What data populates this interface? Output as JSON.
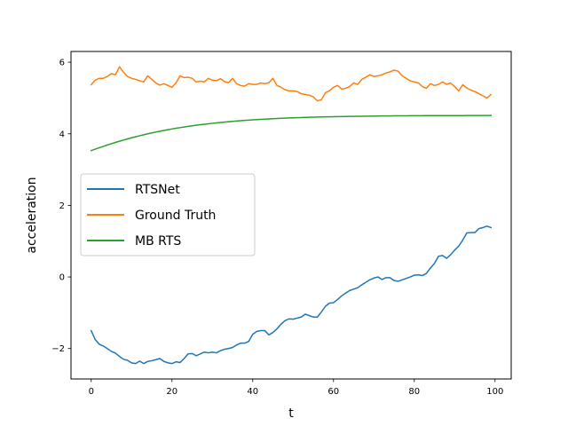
{
  "chart_data": {
    "type": "line",
    "title": "",
    "xlabel": "t",
    "ylabel": "acceleration",
    "xlim": [
      -5,
      104
    ],
    "ylim": [
      -2.85,
      6.3
    ],
    "xticks": [
      0,
      20,
      40,
      60,
      80,
      100
    ],
    "yticks": [
      -2,
      0,
      2,
      4,
      6
    ],
    "xtick_labels": [
      "0",
      "20",
      "40",
      "60",
      "80",
      "100"
    ],
    "ytick_labels": [
      "−2",
      "0",
      "2",
      "4",
      "6"
    ],
    "grid": false,
    "legend_position": "center-left",
    "x": [
      0,
      1,
      2,
      3,
      4,
      5,
      6,
      7,
      8,
      9,
      10,
      11,
      12,
      13,
      14,
      15,
      16,
      17,
      18,
      19,
      20,
      21,
      22,
      23,
      24,
      25,
      26,
      27,
      28,
      29,
      30,
      31,
      32,
      33,
      34,
      35,
      36,
      37,
      38,
      39,
      40,
      41,
      42,
      43,
      44,
      45,
      46,
      47,
      48,
      49,
      50,
      51,
      52,
      53,
      54,
      55,
      56,
      57,
      58,
      59,
      60,
      61,
      62,
      63,
      64,
      65,
      66,
      67,
      68,
      69,
      70,
      71,
      72,
      73,
      74,
      75,
      76,
      77,
      78,
      79,
      80,
      81,
      82,
      83,
      84,
      85,
      86,
      87,
      88,
      89,
      90,
      91,
      92,
      93,
      94,
      95,
      96,
      97,
      98,
      99
    ],
    "series": [
      {
        "name": "RTSNet",
        "color": "#1f77b4",
        "values": [
          -1.5,
          -1.75,
          -1.88,
          -1.93,
          -2.0,
          -2.08,
          -2.13,
          -2.22,
          -2.3,
          -2.33,
          -2.4,
          -2.42,
          -2.35,
          -2.42,
          -2.36,
          -2.34,
          -2.31,
          -2.28,
          -2.36,
          -2.4,
          -2.42,
          -2.37,
          -2.39,
          -2.28,
          -2.15,
          -2.14,
          -2.2,
          -2.15,
          -2.1,
          -2.12,
          -2.1,
          -2.12,
          -2.06,
          -2.02,
          -2.0,
          -1.97,
          -1.9,
          -1.85,
          -1.85,
          -1.8,
          -1.6,
          -1.52,
          -1.5,
          -1.5,
          -1.62,
          -1.55,
          -1.45,
          -1.32,
          -1.22,
          -1.17,
          -1.18,
          -1.15,
          -1.12,
          -1.04,
          -1.08,
          -1.12,
          -1.12,
          -0.98,
          -0.82,
          -0.73,
          -0.72,
          -0.63,
          -0.53,
          -0.45,
          -0.38,
          -0.34,
          -0.3,
          -0.22,
          -0.15,
          -0.08,
          -0.03,
          0.0,
          -0.07,
          -0.02,
          -0.02,
          -0.1,
          -0.12,
          -0.08,
          -0.04,
          0.0,
          0.05,
          0.06,
          0.04,
          0.1,
          0.25,
          0.38,
          0.58,
          0.6,
          0.52,
          0.62,
          0.75,
          0.86,
          1.03,
          1.23,
          1.24,
          1.24,
          1.35,
          1.38,
          1.42,
          1.38
        ]
      },
      {
        "name": "Ground Truth",
        "color": "#ff7f0e",
        "values": [
          5.37,
          5.5,
          5.55,
          5.55,
          5.6,
          5.68,
          5.65,
          5.87,
          5.72,
          5.6,
          5.55,
          5.52,
          5.48,
          5.45,
          5.62,
          5.52,
          5.42,
          5.36,
          5.4,
          5.35,
          5.3,
          5.42,
          5.62,
          5.57,
          5.58,
          5.55,
          5.45,
          5.47,
          5.45,
          5.55,
          5.5,
          5.48,
          5.54,
          5.46,
          5.43,
          5.55,
          5.4,
          5.35,
          5.33,
          5.4,
          5.38,
          5.38,
          5.42,
          5.4,
          5.43,
          5.55,
          5.35,
          5.3,
          5.23,
          5.2,
          5.2,
          5.18,
          5.12,
          5.1,
          5.08,
          5.03,
          4.92,
          4.95,
          5.15,
          5.2,
          5.3,
          5.35,
          5.25,
          5.27,
          5.32,
          5.42,
          5.38,
          5.52,
          5.58,
          5.65,
          5.6,
          5.62,
          5.65,
          5.7,
          5.73,
          5.78,
          5.75,
          5.62,
          5.55,
          5.48,
          5.45,
          5.42,
          5.32,
          5.27,
          5.4,
          5.35,
          5.38,
          5.45,
          5.38,
          5.42,
          5.32,
          5.2,
          5.37,
          5.28,
          5.22,
          5.18,
          5.12,
          5.06,
          5.0,
          5.1
        ]
      },
      {
        "name": "MB RTS",
        "color": "#2ca02c",
        "values": [
          3.53,
          3.57,
          3.61,
          3.649,
          3.687,
          3.723,
          3.758,
          3.792,
          3.825,
          3.857,
          3.888,
          3.917,
          3.946,
          3.973,
          3.999,
          4.024,
          4.048,
          4.071,
          4.093,
          4.114,
          4.135,
          4.154,
          4.172,
          4.19,
          4.207,
          4.223,
          4.238,
          4.253,
          4.267,
          4.28,
          4.293,
          4.305,
          4.316,
          4.327,
          4.338,
          4.348,
          4.357,
          4.366,
          4.374,
          4.382,
          4.39,
          4.397,
          4.404,
          4.41,
          4.416,
          4.422,
          4.427,
          4.433,
          4.437,
          4.442,
          4.446,
          4.45,
          4.454,
          4.458,
          4.461,
          4.464,
          4.467,
          4.47,
          4.473,
          4.475,
          4.478,
          4.48,
          4.482,
          4.484,
          4.486,
          4.488,
          4.49,
          4.491,
          4.493,
          4.494,
          4.495,
          4.497,
          4.498,
          4.499,
          4.5,
          4.501,
          4.502,
          4.503,
          4.503,
          4.504,
          4.505,
          4.506,
          4.506,
          4.507,
          4.507,
          4.508,
          4.508,
          4.509,
          4.509,
          4.509,
          4.51,
          4.51,
          4.51,
          4.511,
          4.511,
          4.511,
          4.511,
          4.512,
          4.512,
          4.512
        ]
      }
    ]
  }
}
